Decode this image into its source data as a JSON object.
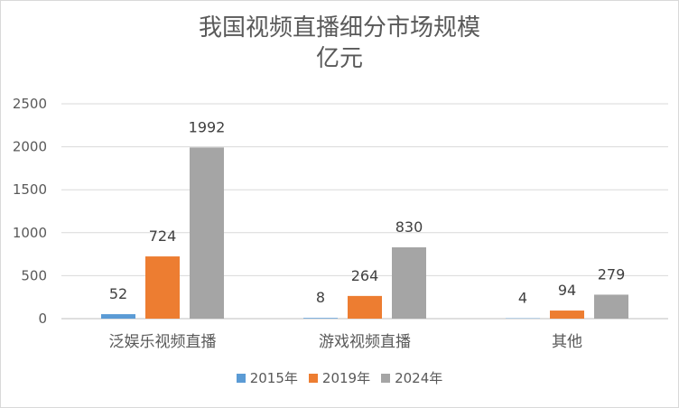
{
  "chart_data": {
    "type": "bar",
    "title_line1": "我国视频直播细分市场规模",
    "title_line2": "亿元",
    "categories": [
      "泛娱乐视频直播",
      "游戏视频直播",
      "其他"
    ],
    "series": [
      {
        "name": "2015年",
        "values": [
          52,
          8,
          4
        ],
        "color": "#5b9bd5"
      },
      {
        "name": "2019年",
        "values": [
          724,
          264,
          94
        ],
        "color": "#ed7d31"
      },
      {
        "name": "2024年",
        "values": [
          1992,
          830,
          279
        ],
        "color": "#a5a5a5"
      }
    ],
    "yticks": [
      "0",
      "500",
      "1000",
      "1500",
      "2000",
      "2500"
    ],
    "ylim": [
      0,
      2500
    ],
    "grid": true,
    "legend_position": "bottom"
  }
}
